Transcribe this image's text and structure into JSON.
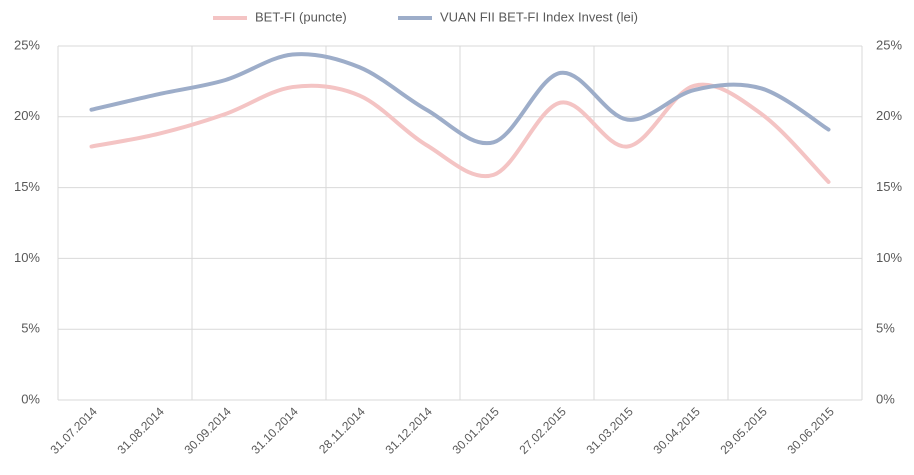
{
  "chart_data": {
    "type": "line",
    "categories": [
      "31.07.2014",
      "31.08.2014",
      "30.09.2014",
      "31.10.2014",
      "28.11.2014",
      "31.12.2014",
      "30.01.2015",
      "27.02.2015",
      "31.03.2015",
      "30.04.2015",
      "29.05.2015",
      "30.06.2015"
    ],
    "series": [
      {
        "name": "BET-FI (puncte)",
        "color": "#f4c4c4",
        "values": [
          17.9,
          18.8,
          20.2,
          22.1,
          21.5,
          18.0,
          15.9,
          21.0,
          17.9,
          22.2,
          20.2,
          15.4
        ]
      },
      {
        "name": "VUAN FII BET-FI Index Invest (lei)",
        "color": "#9dadc9",
        "values": [
          20.5,
          21.6,
          22.6,
          24.4,
          23.5,
          20.5,
          18.2,
          23.1,
          19.8,
          21.9,
          22.0,
          19.1
        ]
      }
    ],
    "ylim": [
      0,
      25
    ],
    "yticks": [
      {
        "value": 0,
        "label": "0%"
      },
      {
        "value": 5,
        "label": "5%"
      },
      {
        "value": 10,
        "label": "10%"
      },
      {
        "value": 15,
        "label": "15%"
      },
      {
        "value": 20,
        "label": "20%"
      },
      {
        "value": 25,
        "label": "25%"
      }
    ],
    "y2lim": [
      0,
      25
    ],
    "y2ticks": [
      {
        "value": 0,
        "label": "0%"
      },
      {
        "value": 5,
        "label": "5%"
      },
      {
        "value": 10,
        "label": "10%"
      },
      {
        "value": 15,
        "label": "15%"
      },
      {
        "value": 20,
        "label": "20%"
      },
      {
        "value": 25,
        "label": "25%"
      }
    ],
    "grid": true,
    "legend": "top",
    "smooth": true
  }
}
